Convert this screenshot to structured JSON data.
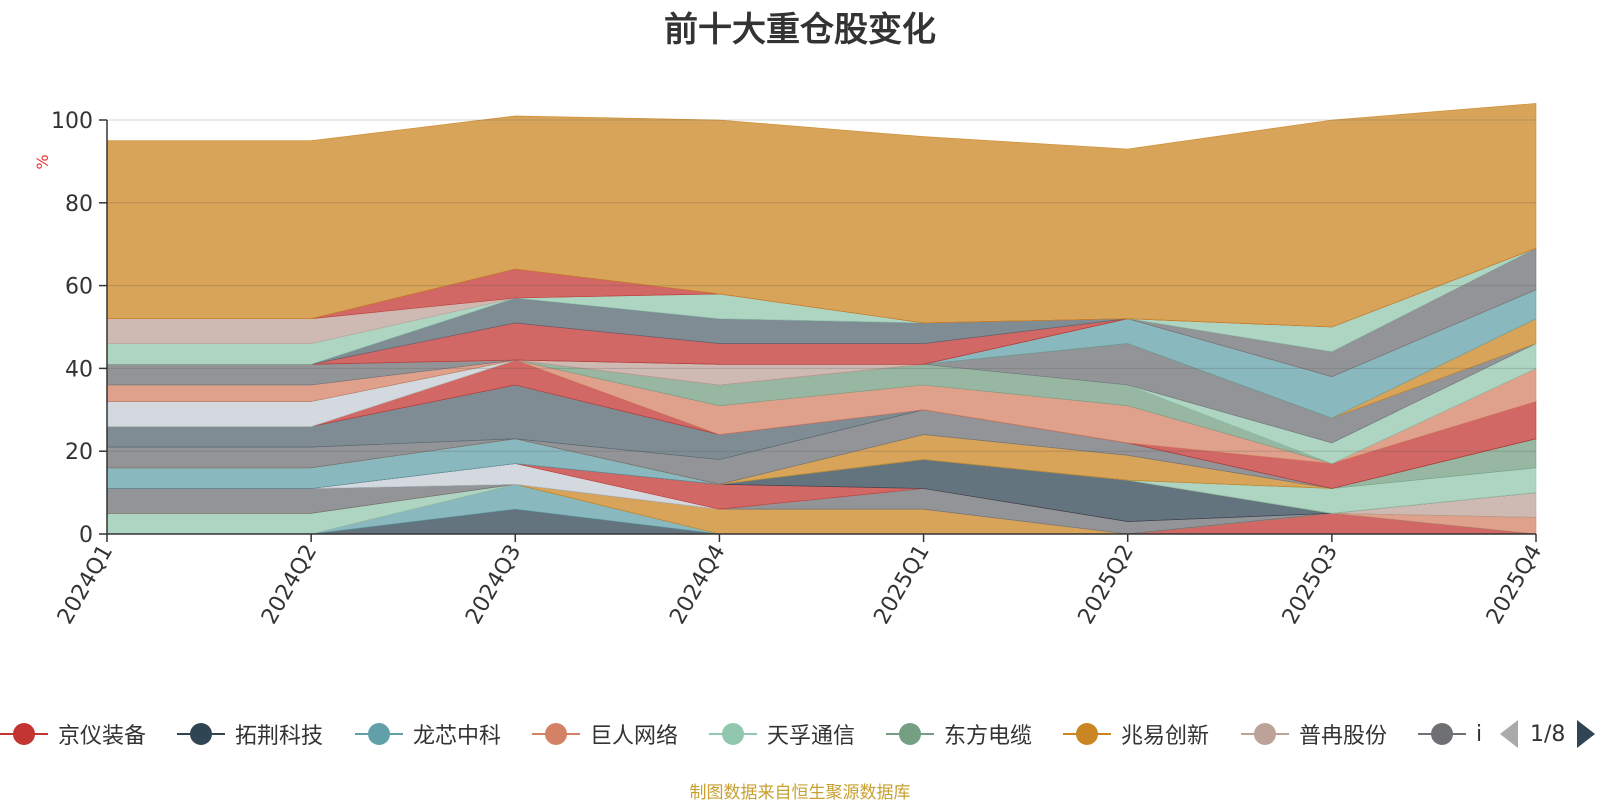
{
  "chart_data": {
    "type": "area",
    "title": "前十大重仓股变化",
    "ylabel": "%",
    "ylim": [
      0,
      100
    ],
    "yticks": [
      0,
      20,
      40,
      60,
      80,
      100
    ],
    "categories": [
      "2024Q1",
      "2024Q2",
      "2024Q3",
      "2024Q4",
      "2025Q1",
      "2025Q2",
      "2025Q3",
      "2025Q4"
    ],
    "stacked": true,
    "grid": true,
    "legend_position": "bottom",
    "series": [
      {
        "name": "京仪装备",
        "color": "#c23531",
        "values": [
          0,
          0,
          0,
          0,
          0,
          0,
          5,
          0
        ]
      },
      {
        "name": "拓荆科技",
        "color": "#2f4554",
        "values": [
          0,
          0,
          6,
          0,
          0,
          0,
          0,
          0
        ]
      },
      {
        "name": "龙芯中科",
        "color": "#61a0a8",
        "values": [
          0,
          0,
          6,
          0,
          0,
          0,
          0,
          0
        ]
      },
      {
        "name": "巨人网络",
        "color": "#d48265",
        "values": [
          0,
          0,
          0,
          0,
          0,
          0,
          0,
          4
        ]
      },
      {
        "name": "天孚通信",
        "color": "#91c7ae",
        "values": [
          5,
          5,
          0,
          0,
          0,
          0,
          0,
          0
        ]
      },
      {
        "name": "东方电缆",
        "color": "#749f83",
        "values": [
          0,
          0,
          0,
          0,
          0,
          0,
          0,
          0
        ]
      },
      {
        "name": "兆易创新",
        "color": "#ca8622",
        "values": [
          0,
          0,
          0,
          6,
          6,
          0,
          0,
          0
        ]
      },
      {
        "name": "普冉股份",
        "color": "#bda29a",
        "values": [
          0,
          0,
          0,
          0,
          0,
          0,
          0,
          6
        ]
      },
      {
        "name": "",
        "color": "#6e7074",
        "values": [
          6,
          6,
          0,
          0,
          5,
          3,
          0,
          0
        ]
      },
      {
        "name": "",
        "color": "#546570",
        "values": [
          0,
          0,
          0,
          0,
          0,
          0,
          0,
          0
        ]
      },
      {
        "name": "",
        "color": "#c4ccd3",
        "values": [
          0,
          0,
          5,
          0,
          0,
          0,
          0,
          0
        ]
      },
      {
        "name": "",
        "color": "#c23531",
        "values": [
          0,
          0,
          0,
          6,
          0,
          0,
          0,
          0
        ]
      },
      {
        "name": "",
        "color": "#2f4554",
        "values": [
          0,
          0,
          0,
          0,
          7,
          10,
          0,
          0
        ]
      },
      {
        "name": "",
        "color": "#61a0a8",
        "values": [
          5,
          5,
          6,
          0,
          0,
          0,
          0,
          0
        ]
      },
      {
        "name": "",
        "color": "#d48265",
        "values": [
          0,
          0,
          0,
          0,
          0,
          0,
          0,
          0
        ]
      },
      {
        "name": "",
        "color": "#91c7ae",
        "values": [
          0,
          0,
          0,
          0,
          0,
          0,
          6,
          6
        ]
      },
      {
        "name": "",
        "color": "#749f83",
        "values": [
          0,
          0,
          0,
          0,
          0,
          0,
          0,
          7
        ]
      },
      {
        "name": "",
        "color": "#ca8622",
        "values": [
          0,
          0,
          0,
          0,
          6,
          6,
          0,
          0
        ]
      },
      {
        "name": "",
        "color": "#bda29a",
        "values": [
          0,
          0,
          0,
          0,
          0,
          0,
          0,
          0
        ]
      },
      {
        "name": "",
        "color": "#6e7074",
        "values": [
          5,
          5,
          0,
          6,
          6,
          3,
          0,
          0
        ]
      },
      {
        "name": "",
        "color": "#546570",
        "values": [
          5,
          5,
          13,
          6,
          0,
          0,
          0,
          0
        ]
      },
      {
        "name": "",
        "color": "#c23531",
        "values": [
          0,
          0,
          6,
          0,
          0,
          0,
          6,
          9
        ]
      },
      {
        "name": "",
        "color": "#d48265",
        "values": [
          0,
          0,
          0,
          7,
          6,
          9,
          0,
          8
        ]
      },
      {
        "name": "",
        "color": "#749f83",
        "values": [
          0,
          0,
          0,
          5,
          5,
          5,
          0,
          0
        ]
      },
      {
        "name": "",
        "color": "#91c7ae",
        "values": [
          0,
          0,
          0,
          0,
          0,
          0,
          5,
          6
        ]
      },
      {
        "name": "",
        "color": "#c4ccd3",
        "values": [
          6,
          6,
          0,
          0,
          0,
          0,
          0,
          0
        ]
      },
      {
        "name": "",
        "color": "#6e7074",
        "values": [
          0,
          0,
          0,
          0,
          0,
          10,
          6,
          0
        ]
      },
      {
        "name": "",
        "color": "#ca8622",
        "values": [
          0,
          0,
          0,
          0,
          0,
          0,
          0,
          6
        ]
      },
      {
        "name": "",
        "color": "#61a0a8",
        "values": [
          0,
          0,
          0,
          0,
          0,
          6,
          10,
          7
        ]
      },
      {
        "name": "",
        "color": "#d48265",
        "values": [
          4,
          4,
          0,
          0,
          0,
          0,
          0,
          0
        ]
      },
      {
        "name": "",
        "color": "#bda29a",
        "values": [
          0,
          0,
          0,
          5,
          0,
          0,
          0,
          0
        ]
      },
      {
        "name": "",
        "color": "#6e7074",
        "values": [
          5,
          5,
          0,
          0,
          0,
          0,
          6,
          10
        ]
      },
      {
        "name": "",
        "color": "#c23531",
        "values": [
          0,
          0,
          9,
          5,
          5,
          0,
          0,
          0
        ]
      },
      {
        "name": "",
        "color": "#546570",
        "values": [
          0,
          0,
          6,
          6,
          5,
          0,
          0,
          0
        ]
      },
      {
        "name": "",
        "color": "#91c7ae",
        "values": [
          5,
          5,
          0,
          6,
          0,
          0,
          6,
          0
        ]
      },
      {
        "name": "",
        "color": "#bda29a",
        "values": [
          6,
          6,
          0,
          0,
          0,
          0,
          0,
          0
        ]
      },
      {
        "name": "",
        "color": "#c23531",
        "values": [
          0,
          0,
          7,
          0,
          0,
          0,
          0,
          0
        ]
      },
      {
        "name": "",
        "color": "#ca8622",
        "values": [
          43,
          43,
          37,
          42,
          45,
          41,
          50,
          35
        ]
      }
    ]
  },
  "legend": {
    "items": [
      {
        "label": "京仪装备",
        "color": "#c23531"
      },
      {
        "label": "拓荆科技",
        "color": "#2f4554"
      },
      {
        "label": "龙芯中科",
        "color": "#61a0a8"
      },
      {
        "label": "巨人网络",
        "color": "#d48265"
      },
      {
        "label": "天孚通信",
        "color": "#91c7ae"
      },
      {
        "label": "东方电缆",
        "color": "#749f83"
      },
      {
        "label": "兆易创新",
        "color": "#ca8622"
      },
      {
        "label": "普冉股份",
        "color": "#bda29a"
      },
      {
        "label": "i",
        "color": "#6e7074"
      }
    ],
    "pager": "1/8"
  },
  "source_note": "制图数据来自恒生聚源数据库"
}
